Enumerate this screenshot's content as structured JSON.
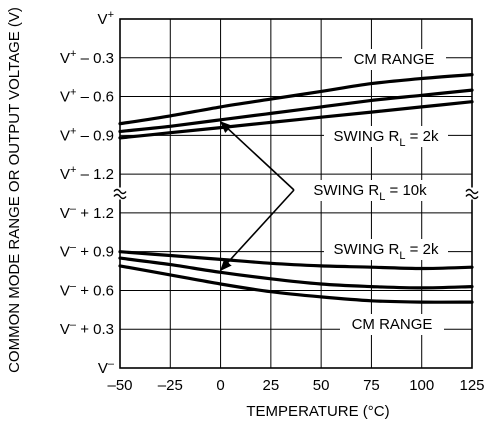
{
  "chart_data": {
    "type": "line",
    "xlabel": "TEMPERATURE (°C)",
    "ylabel": "COMMON MODE RANGE OR OUTPUT VOLTAGE (V)",
    "xlim": [
      -50,
      125
    ],
    "x_ticks": [
      -50,
      -25,
      0,
      25,
      50,
      75,
      100,
      125
    ],
    "x_tick_labels": [
      "–50",
      "–25",
      "0",
      "25",
      "50",
      "75",
      "100",
      "125"
    ],
    "axis_break": "between V+ – 1.2 and V– + 1.2",
    "y_tick_labels": [
      {
        "main": "V",
        "sup": "+",
        "suffix": ""
      },
      {
        "main": "V",
        "sup": "+",
        "suffix": " – 0.3"
      },
      {
        "main": "V",
        "sup": "+",
        "suffix": " – 0.6"
      },
      {
        "main": "V",
        "sup": "+",
        "suffix": " – 0.9"
      },
      {
        "main": "V",
        "sup": "+",
        "suffix": " – 1.2"
      },
      {
        "main": "V",
        "sup": "–",
        "suffix": " + 1.2"
      },
      {
        "main": "V",
        "sup": "–",
        "suffix": " + 0.9"
      },
      {
        "main": "V",
        "sup": "–",
        "suffix": " + 0.6"
      },
      {
        "main": "V",
        "sup": "–",
        "suffix": " + 0.3"
      },
      {
        "main": "V",
        "sup": "–",
        "suffix": ""
      }
    ],
    "upper_panel": {
      "reference": "V+",
      "offset_unit": "V",
      "ylim": [
        -1.35,
        0
      ],
      "series": [
        {
          "label": "CM RANGE",
          "x": [
            -50,
            -25,
            0,
            25,
            50,
            75,
            100,
            125
          ],
          "y": [
            -0.81,
            -0.75,
            -0.68,
            -0.62,
            -0.56,
            -0.5,
            -0.46,
            -0.43
          ]
        },
        {
          "label": "SWING RL = 10k",
          "x": [
            -50,
            -25,
            0,
            25,
            50,
            75,
            100,
            125
          ],
          "y": [
            -0.87,
            -0.83,
            -0.78,
            -0.73,
            -0.68,
            -0.63,
            -0.59,
            -0.55
          ]
        },
        {
          "label": "SWING RL = 2k",
          "x": [
            -50,
            -25,
            0,
            25,
            50,
            75,
            100,
            125
          ],
          "y": [
            -0.92,
            -0.88,
            -0.84,
            -0.8,
            -0.76,
            -0.72,
            -0.68,
            -0.64
          ]
        }
      ]
    },
    "lower_panel": {
      "reference": "V–",
      "offset_unit": "V",
      "ylim": [
        0,
        1.35
      ],
      "series": [
        {
          "label": "SWING RL = 2k",
          "x": [
            -50,
            -25,
            0,
            25,
            50,
            75,
            100,
            125
          ],
          "y": [
            0.9,
            0.87,
            0.84,
            0.81,
            0.79,
            0.78,
            0.77,
            0.78
          ]
        },
        {
          "label": "SWING RL = 10k",
          "x": [
            -50,
            -25,
            0,
            25,
            50,
            75,
            100,
            125
          ],
          "y": [
            0.85,
            0.8,
            0.74,
            0.69,
            0.65,
            0.63,
            0.62,
            0.63
          ]
        },
        {
          "label": "CM RANGE",
          "x": [
            -50,
            -25,
            0,
            25,
            50,
            75,
            100,
            125
          ],
          "y": [
            0.79,
            0.72,
            0.65,
            0.59,
            0.55,
            0.52,
            0.51,
            0.51
          ]
        }
      ]
    },
    "annotations": [
      {
        "main": "CM RANGE",
        "sub": "",
        "tail": ""
      },
      {
        "main": "SWING R",
        "sub": "L",
        "tail": " = 2k"
      },
      {
        "main": "SWING R",
        "sub": "L",
        "tail": " = 10k"
      },
      {
        "main": "SWING R",
        "sub": "L",
        "tail": " = 2k"
      },
      {
        "main": "CM RANGE",
        "sub": "",
        "tail": ""
      }
    ],
    "grid": true
  }
}
